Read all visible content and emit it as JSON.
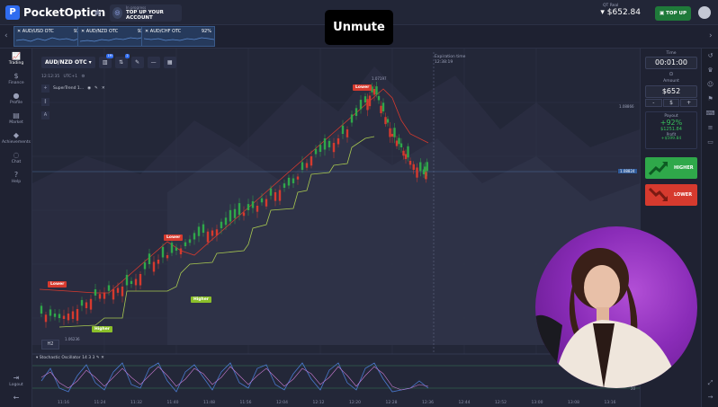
{
  "topbar": {
    "logo_text": "PocketOption",
    "promo_line1": "In progress",
    "promo_line2": "TOP UP YOUR ACCOUNT",
    "unmute_label": "Unmute",
    "account_type": "QT Real",
    "balance": "$652.84",
    "topup_label": "TOP UP"
  },
  "asset_tabs": [
    {
      "name": "AUD/USD OTC",
      "payout": "92%"
    },
    {
      "name": "AUD/NZD OTC",
      "payout": "92%"
    },
    {
      "name": "AUD/CHF OTC",
      "payout": "92%"
    }
  ],
  "leftnav": [
    {
      "label": "Trading",
      "icon": "chart-icon"
    },
    {
      "label": "Finance",
      "icon": "dollar-icon"
    },
    {
      "label": "Profile",
      "icon": "user-icon"
    },
    {
      "label": "Market",
      "icon": "cart-icon"
    },
    {
      "label": "Achievements",
      "icon": "diamond-icon"
    },
    {
      "label": "Chat",
      "icon": "chat-icon"
    },
    {
      "label": "Help",
      "icon": "help-icon"
    }
  ],
  "leftnav_bottom": {
    "logout_label": "Logout"
  },
  "chart": {
    "asset_selected": "AUD/NZD OTC",
    "info_time": "12:12:35",
    "info_tz": "UTC+1",
    "indicator_name": "SuperTrend 1...",
    "expiration_label": "Expiration time",
    "expiration_value": "12:38:19",
    "timeframe": "H2",
    "oscillator_label": "Stochastic Oscillator  14 3 3",
    "price_high": "1.07197",
    "price_mark": "1.08824",
    "price_right_top": "1.08866",
    "price_low": "1.06236",
    "signals": [
      "Lower",
      "Lower",
      "Lower",
      "Higher",
      "Higher"
    ],
    "time_labels": [
      "11:16",
      "11:24",
      "11:32",
      "11:40",
      "11:48",
      "11:56",
      "12:04",
      "12:12",
      "12:20",
      "12:28",
      "12:36",
      "12:44",
      "12:52",
      "13:00",
      "13:08",
      "13:16",
      "13:24"
    ],
    "osc_levels": [
      "80",
      "20"
    ]
  },
  "panel": {
    "time_label": "Time",
    "time_value": "00:01:00",
    "amount_label": "Amount",
    "amount_value": "$652",
    "amount_minus": "-",
    "amount_currency": "$",
    "amount_plus": "+",
    "payout_label": "Payout",
    "payout_percent": "+92%",
    "payout_amount": "$1251.84",
    "profit_label": "Profit",
    "profit_value": "+$599.84",
    "higher_label": "HIGHER",
    "lower_label": "LOWER"
  },
  "colors": {
    "up": "#2fa84a",
    "down": "#d63a2e",
    "accent": "#2f6cf0",
    "webcam_bg": "#8a2cb8"
  }
}
